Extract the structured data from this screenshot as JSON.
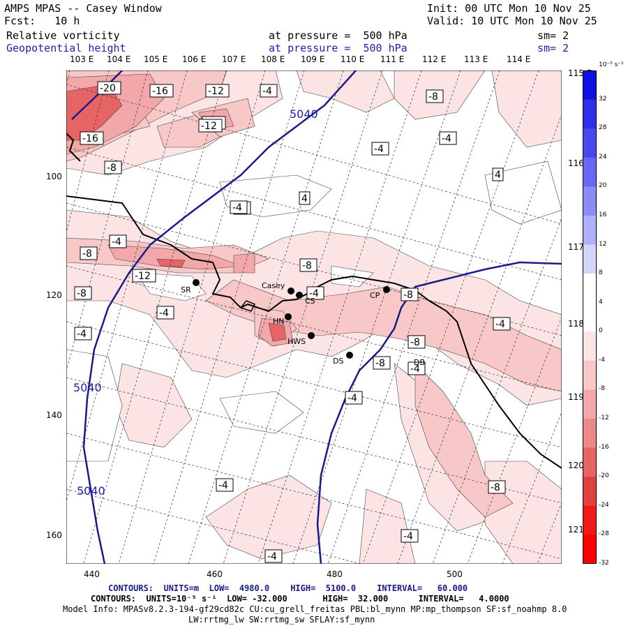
{
  "header": {
    "title": "AMPS MPAS -- Casey Window",
    "init": "Init: 00 UTC Mon 10 Nov 25",
    "fcst": "Fcst:   10 h",
    "valid": "Valid: 10 UTC Mon 10 Nov 25",
    "var1": "Relative vorticity",
    "var1_level": "at pressure =  500 hPa",
    "var1_sm": "sm= 2",
    "var2": "Geopotential height",
    "var2_level": "at pressure =  500 hPa",
    "var2_sm": "sm= 2"
  },
  "top_lon_labels": [
    "103 E",
    "104 E",
    "105 E",
    "106 E",
    "107 E",
    "108 E",
    "109 E",
    "110 E",
    "111 E",
    "112 E",
    "113 E",
    "114 E"
  ],
  "right_lon_labels": [
    "115 E",
    "116 E",
    "117 E",
    "118 E",
    "119 E",
    "120 E",
    "121 E"
  ],
  "x_ticks": [
    "440",
    "460",
    "480",
    "500"
  ],
  "y_ticks": [
    "100",
    "120",
    "140",
    "160"
  ],
  "stations": [
    {
      "id": "SR",
      "label": "SR"
    },
    {
      "id": "Casey",
      "label": "Casey"
    },
    {
      "id": "CS",
      "label": "CS"
    },
    {
      "id": "HN",
      "label": "HN"
    },
    {
      "id": "HWS",
      "label": "HWS"
    },
    {
      "id": "CP",
      "label": "CP"
    },
    {
      "id": "DS",
      "label": "DS"
    },
    {
      "id": "DB",
      "label": "DB"
    }
  ],
  "contour_labels": [
    "-20",
    "-16",
    "-12",
    "-12",
    "-16",
    "-12",
    "-4",
    "-8",
    "-4",
    "-8",
    "-4",
    "4",
    "-4",
    "-4",
    "-8",
    "-12",
    "-8",
    "-8",
    "-4",
    "-4",
    "-8",
    "-4",
    "-4",
    "-8",
    "-8",
    "-4",
    "-4",
    "-4",
    "-4",
    "-8",
    "-4",
    "-8",
    "-4",
    "4"
  ],
  "height_labels": [
    "5040",
    "5040",
    "5040"
  ],
  "colorbar": {
    "unit": "10⁻⁵ s⁻¹",
    "labels": [
      "32",
      "28",
      "24",
      "20",
      "16",
      "12",
      "8",
      "4",
      "0",
      "-4",
      "-8",
      "-12",
      "-16",
      "-20",
      "-24",
      "-28",
      "-32"
    ],
    "colors": [
      "#1010e0",
      "#3030e8",
      "#4848ee",
      "#6868f2",
      "#8c8cf6",
      "#b0b0fa",
      "#d4d4fc",
      "#ffffff",
      "#ffffff",
      "#fde4e4",
      "#f8c8c8",
      "#f2a8a8",
      "#ec8888",
      "#e66464",
      "#e04040",
      "#f01818",
      "#ff0000"
    ]
  },
  "footer": {
    "line1_prefix": "CONTOURS:  UNITS=m  LOW=  4980.0",
    "line1_high": "HIGH=  5100.0",
    "line1_interval": "INTERVAL=   60.000",
    "line2": "CONTOURS:  UNITS=10⁻⁵ s⁻¹  LOW= -32.000       HIGH=  32.000      INTERVAL=   4.0000",
    "line3": "Model Info: MPASv8.2.3-194-gf29cd82c CU:cu_grell_freitas PBL:bl_mynn MP:mp_thompson SF:sf_noahmp 8.0",
    "line4": "LW:rrtmg_lw SW:rrtmg_sw SFLAY:sf_mynn"
  },
  "colors": {
    "height_contour": "#1a1a8c",
    "text_blue": "#2020b0"
  }
}
